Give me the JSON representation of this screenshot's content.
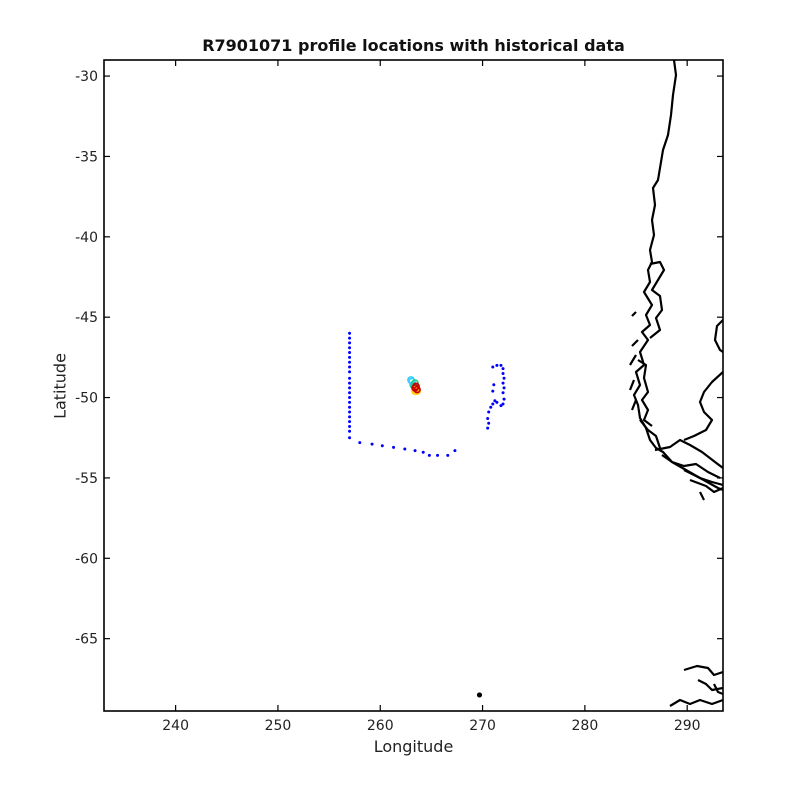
{
  "chart_data": {
    "type": "scatter",
    "title": "R7901071 profile locations with historical data",
    "xlabel": "Longitude",
    "ylabel": "Latitude",
    "xlim": [
      233,
      293.5
    ],
    "ylim": [
      -69.5,
      -29
    ],
    "xticks": [
      240,
      250,
      260,
      270,
      280,
      290
    ],
    "yticks": [
      -30,
      -35,
      -40,
      -45,
      -50,
      -55,
      -60,
      -65
    ],
    "xtick_labels": [
      "240",
      "250",
      "260",
      "270",
      "280",
      "290"
    ],
    "ytick_labels": [
      "-30",
      "-35",
      "-40",
      "-45",
      "-50",
      "-55",
      "-60",
      "-65"
    ],
    "grid": false,
    "colors": {
      "historical": "#0000ff",
      "coast": "#000000",
      "recent": "#cc0000",
      "mid": "#22cc88",
      "early": "#33ccff",
      "mid2": "#ffcc00"
    },
    "series": [
      {
        "points": [
          [
            257.0,
            -46.0
          ],
          [
            257.0,
            -46.3
          ],
          [
            257.0,
            -46.6
          ],
          [
            257.0,
            -46.9
          ],
          [
            257.0,
            -47.2
          ],
          [
            257.0,
            -47.5
          ],
          [
            257.0,
            -47.8
          ],
          [
            257.0,
            -48.1
          ],
          [
            257.0,
            -48.4
          ],
          [
            257.0,
            -48.8
          ],
          [
            257.0,
            -49.1
          ],
          [
            257.0,
            -49.4
          ],
          [
            257.0,
            -49.7
          ],
          [
            257.0,
            -50.0
          ],
          [
            257.0,
            -50.3
          ],
          [
            257.0,
            -50.6
          ],
          [
            257.0,
            -50.9
          ],
          [
            257.0,
            -51.2
          ],
          [
            257.0,
            -51.5
          ],
          [
            257.0,
            -51.8
          ],
          [
            257.0,
            -52.1
          ],
          [
            257.0,
            -52.5
          ],
          [
            258.0,
            -52.8
          ],
          [
            259.2,
            -52.9
          ],
          [
            260.2,
            -53.0
          ],
          [
            261.3,
            -53.1
          ],
          [
            262.4,
            -53.2
          ],
          [
            263.4,
            -53.3
          ],
          [
            264.2,
            -53.4
          ],
          [
            264.8,
            -53.6
          ],
          [
            265.6,
            -53.6
          ],
          [
            266.6,
            -53.6
          ],
          [
            267.3,
            -53.3
          ],
          [
            270.5,
            -51.9
          ],
          [
            270.6,
            -51.6
          ],
          [
            270.5,
            -51.3
          ],
          [
            270.6,
            -50.9
          ],
          [
            270.8,
            -50.6
          ],
          [
            271.0,
            -50.4
          ],
          [
            271.2,
            -50.2
          ],
          [
            271.4,
            -50.3
          ],
          [
            271.8,
            -50.5
          ],
          [
            272.0,
            -50.4
          ],
          [
            272.1,
            -50.1
          ],
          [
            272.0,
            -49.7
          ],
          [
            272.1,
            -49.4
          ],
          [
            272.0,
            -49.1
          ],
          [
            272.1,
            -48.8
          ],
          [
            272.0,
            -48.5
          ],
          [
            272.0,
            -48.2
          ],
          [
            271.8,
            -48.0
          ],
          [
            271.4,
            -48.0
          ],
          [
            271.0,
            -48.1
          ],
          [
            271.1,
            -49.2
          ],
          [
            271.0,
            -49.6
          ]
        ]
      },
      {
        "points": [
          [
            263.0,
            -48.9
          ],
          [
            263.1,
            -49.0
          ],
          [
            263.2,
            -49.2
          ],
          [
            263.3,
            -49.3
          ],
          [
            263.4,
            -49.1
          ],
          [
            263.5,
            -49.4
          ],
          [
            263.6,
            -49.6
          ],
          [
            263.5,
            -49.5
          ],
          [
            263.4,
            -49.6
          ],
          [
            263.5,
            -49.3
          ],
          [
            263.6,
            -49.5
          ],
          [
            263.4,
            -49.4
          ]
        ]
      },
      {
        "points": [
          [
            269.7,
            -68.5
          ]
        ]
      }
    ]
  }
}
